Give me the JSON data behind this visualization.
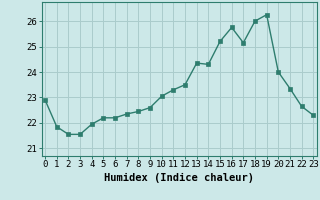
{
  "x": [
    0,
    1,
    2,
    3,
    4,
    5,
    6,
    7,
    8,
    9,
    10,
    11,
    12,
    13,
    14,
    15,
    16,
    17,
    18,
    19,
    20,
    21,
    22,
    23
  ],
  "y": [
    22.9,
    21.85,
    21.55,
    21.55,
    21.95,
    22.2,
    22.2,
    22.35,
    22.45,
    22.6,
    23.05,
    23.3,
    23.5,
    24.35,
    24.3,
    25.2,
    25.75,
    25.15,
    26.0,
    26.25,
    24.0,
    23.35,
    22.65,
    22.3
  ],
  "line_color": "#2e7d6e",
  "marker": "s",
  "marker_size": 2.2,
  "bg_color": "#cce8e8",
  "grid_color": "#aacccc",
  "xlabel": "Humidex (Indice chaleur)",
  "xlabel_fontsize": 7.5,
  "tick_fontsize": 6.5,
  "yticks": [
    21,
    22,
    23,
    24,
    25,
    26
  ],
  "xticks": [
    0,
    1,
    2,
    3,
    4,
    5,
    6,
    7,
    8,
    9,
    10,
    11,
    12,
    13,
    14,
    15,
    16,
    17,
    18,
    19,
    20,
    21,
    22,
    23
  ],
  "ylim": [
    20.7,
    26.75
  ],
  "xlim": [
    -0.3,
    23.3
  ],
  "line_width": 1.0
}
